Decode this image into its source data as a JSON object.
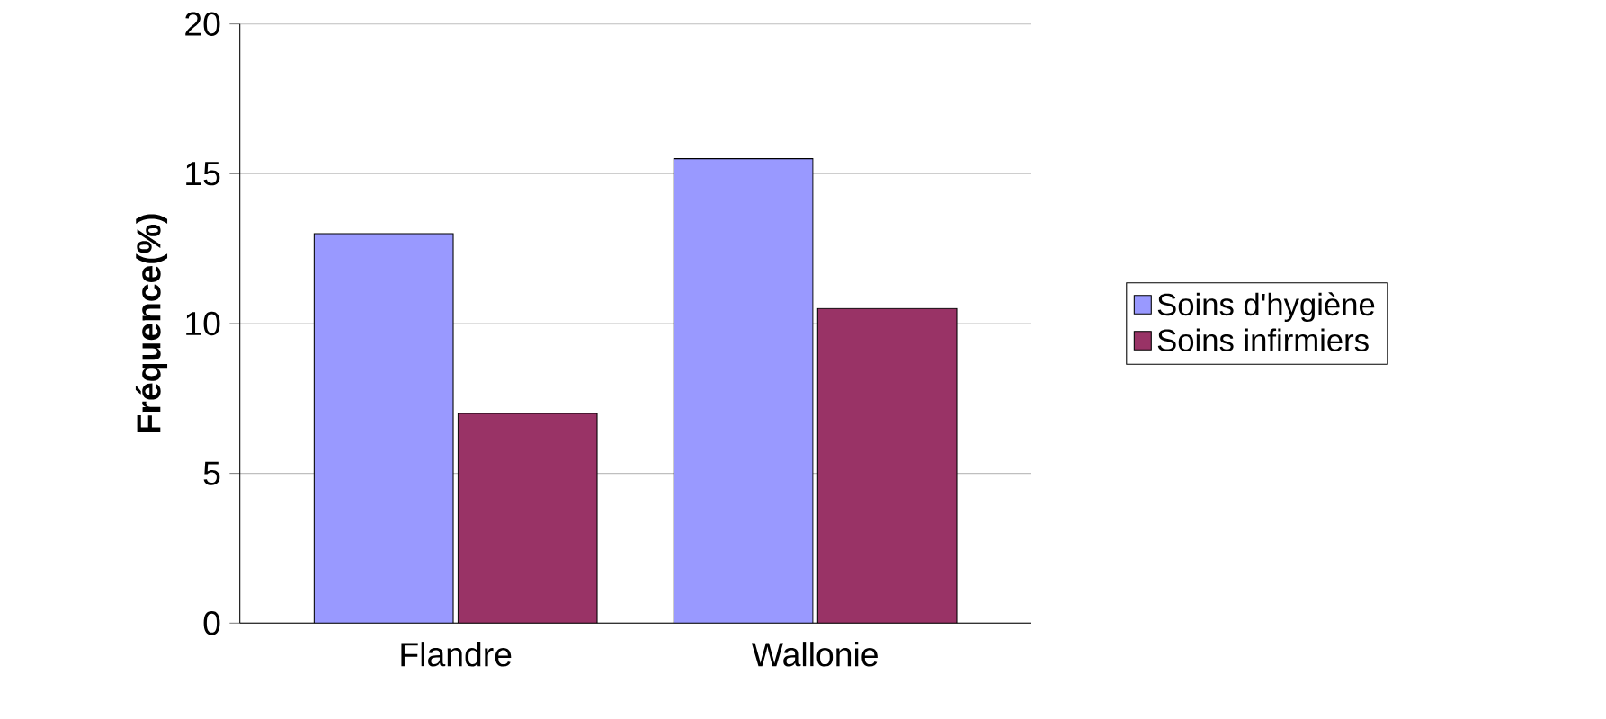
{
  "chart_data": {
    "type": "bar",
    "ylabel": "Fréquence(%)",
    "categories": [
      "Flandre",
      "Wallonie"
    ],
    "series": [
      {
        "name": "Soins d'hygiène",
        "color": "#9999ff",
        "values": [
          13,
          15.5
        ]
      },
      {
        "name": "Soins infirmiers",
        "color": "#993366",
        "values": [
          7,
          10.5
        ]
      }
    ],
    "ylim": [
      0,
      20
    ],
    "yticks": [
      0,
      5,
      10,
      15,
      20
    ],
    "grid": "y",
    "legend": "right"
  }
}
